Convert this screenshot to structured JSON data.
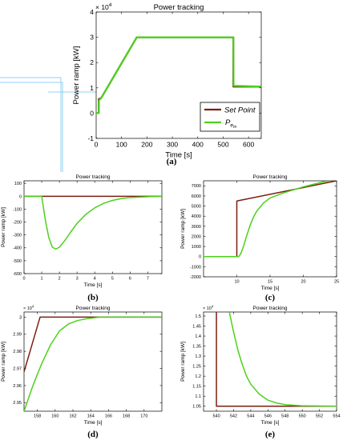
{
  "colors": {
    "set_point": "#7b1f10",
    "pem": "#4cd11d",
    "axis": "#000000",
    "decor_line": "#8fd2f0"
  },
  "legend": {
    "set_point": "Set Point",
    "pem_main": "P",
    "pem_sub": "e",
    "pem_subsub": "m"
  },
  "chart_data": [
    {
      "id": "a",
      "type": "line",
      "title": "Power tracking",
      "caption": "(a)",
      "xlabel": "Time [s]",
      "ylabel": "Power ramp [kW]",
      "xlim": [
        0,
        650
      ],
      "ylim": [
        -1,
        4
      ],
      "xticks": [
        0,
        100,
        200,
        300,
        400,
        500,
        600
      ],
      "yticks": [
        -1,
        0,
        1,
        2,
        3,
        4
      ],
      "ytick_labels": [
        "-1",
        "0",
        "1",
        "2",
        "3",
        "4"
      ],
      "multiplier": "× 10",
      "multiplier_exp": "4",
      "legend_position": "bottom-right",
      "series": [
        {
          "key": "set_point",
          "x": [
            0,
            10,
            10,
            20,
            160,
            540,
            540,
            650
          ],
          "y": [
            0,
            0,
            0.55,
            0.6,
            3,
            3,
            1.05,
            1.05
          ]
        },
        {
          "key": "pem",
          "x": [
            0,
            10,
            11,
            20,
            160,
            540,
            541,
            650
          ],
          "y": [
            0,
            0,
            0.5,
            0.6,
            3,
            3,
            1.08,
            1.05
          ]
        }
      ]
    },
    {
      "id": "b",
      "type": "line",
      "title": "Power tracking",
      "caption": "(b)",
      "xlabel": "Time [s]",
      "ylabel": "Power ramp [kW]",
      "xlim": [
        0,
        7.8
      ],
      "ylim": [
        -600,
        120
      ],
      "xticks": [
        0,
        1,
        2,
        3,
        4,
        5,
        6,
        7
      ],
      "yticks": [
        -600,
        -500,
        -400,
        -300,
        -200,
        -100,
        0,
        100
      ],
      "ytick_labels": [
        "-600",
        "-500",
        "-400",
        "-300",
        "-200",
        "-100",
        "0",
        "100"
      ],
      "series": [
        {
          "key": "set_point",
          "x": [
            0,
            7.8
          ],
          "y": [
            0,
            0
          ]
        },
        {
          "key": "pem",
          "x": [
            0,
            1,
            1.2,
            1.4,
            1.6,
            1.8,
            2.0,
            2.3,
            2.6,
            3.0,
            3.5,
            4.0,
            4.5,
            5.0,
            5.5,
            6.0,
            7.0,
            7.8
          ],
          "y": [
            0,
            0,
            -180,
            -320,
            -395,
            -410,
            -395,
            -345,
            -285,
            -210,
            -140,
            -90,
            -55,
            -32,
            -18,
            -10,
            -3,
            0
          ]
        }
      ]
    },
    {
      "id": "c",
      "type": "line",
      "title": "Power tracking",
      "caption": "(c)",
      "xlabel": "Time [s]",
      "ylabel": "Power ramp [kW]",
      "xlim": [
        5,
        25
      ],
      "ylim": [
        -2000,
        7500
      ],
      "xticks": [
        10,
        15,
        20,
        25
      ],
      "yticks": [
        -2000,
        -1000,
        0,
        1000,
        2000,
        3000,
        4000,
        5000,
        6000,
        7000
      ],
      "ytick_labels": [
        "-2000",
        "-1000",
        "0",
        "1000",
        "2000",
        "3000",
        "4000",
        "5000",
        "6000",
        "7000"
      ],
      "series": [
        {
          "key": "set_point",
          "x": [
            5,
            10,
            10,
            25
          ],
          "y": [
            0,
            0,
            5500,
            7500
          ]
        },
        {
          "key": "pem",
          "x": [
            5,
            10.3,
            10.6,
            11,
            11.5,
            12,
            12.5,
            13,
            14,
            15,
            17,
            20,
            23,
            24.2
          ],
          "y": [
            0,
            0,
            300,
            1000,
            2100,
            3100,
            3900,
            4500,
            5300,
            5800,
            6300,
            6900,
            7400,
            7500
          ]
        }
      ]
    },
    {
      "id": "d",
      "type": "line",
      "title": "Power tracking",
      "caption": "(d)",
      "xlabel": "Time [s]",
      "ylabel": "Power ramp [kW]",
      "xlim": [
        156.5,
        172
      ],
      "ylim": [
        2.945,
        3.003
      ],
      "xticks": [
        158,
        160,
        162,
        164,
        166,
        168,
        170
      ],
      "yticks": [
        2.95,
        2.96,
        2.97,
        2.98,
        2.99,
        3.0
      ],
      "ytick_labels": [
        "2.95",
        "2.96",
        "2.97",
        "2.98",
        "2.99",
        "3"
      ],
      "multiplier": "× 10",
      "multiplier_exp": "4",
      "series": [
        {
          "key": "set_point",
          "x": [
            156.5,
            158.3,
            172
          ],
          "y": [
            2.968,
            3.0,
            3.0
          ]
        },
        {
          "key": "pem",
          "x": [
            156.5,
            157.5,
            158.5,
            159.5,
            160.5,
            161.5,
            162.5,
            163.5,
            165,
            172
          ],
          "y": [
            2.945,
            2.96,
            2.973,
            2.984,
            2.992,
            2.996,
            2.998,
            2.999,
            3.0,
            3.0
          ]
        }
      ]
    },
    {
      "id": "e",
      "type": "line",
      "title": "Power tracking",
      "caption": "(e)",
      "xlabel": "Time [s]",
      "ylabel": "Power ramp [kW]",
      "xlim": [
        538.5,
        554
      ],
      "ylim": [
        1.025,
        1.52
      ],
      "xticks": [
        540,
        542,
        544,
        546,
        548,
        550,
        552,
        554
      ],
      "yticks": [
        1.05,
        1.1,
        1.15,
        1.2,
        1.25,
        1.3,
        1.35,
        1.4,
        1.45,
        1.5
      ],
      "ytick_labels": [
        "1.05",
        "1.1",
        "1.15",
        "1.2",
        "1.25",
        "1.3",
        "1.35",
        "1.4",
        "1.45",
        "1.5"
      ],
      "multiplier": "× 10",
      "multiplier_exp": "4",
      "series": [
        {
          "key": "set_point",
          "x": [
            540,
            540,
            554
          ],
          "y": [
            1.52,
            1.05,
            1.05
          ]
        },
        {
          "key": "pem",
          "x": [
            541.5,
            542,
            542.5,
            543,
            543.5,
            544,
            545,
            546,
            547,
            548,
            550,
            554
          ],
          "y": [
            1.52,
            1.42,
            1.33,
            1.26,
            1.2,
            1.16,
            1.11,
            1.08,
            1.066,
            1.058,
            1.052,
            1.05
          ]
        }
      ]
    }
  ]
}
